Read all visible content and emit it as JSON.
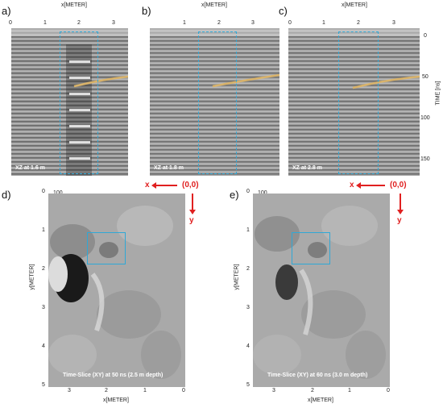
{
  "panels_top": [
    {
      "letter": "a)",
      "x_title": "x[METER]",
      "x_ticks": [
        "0",
        "1",
        "2",
        "3"
      ],
      "caption": "XZ at 1.6 m"
    },
    {
      "letter": "b)",
      "x_title": "x[METER]",
      "x_ticks": [
        "1",
        "2",
        "3"
      ],
      "caption": "XZ at 1.8 m"
    },
    {
      "letter": "c)",
      "x_title": "x[METER]",
      "x_ticks": [
        "0",
        "1",
        "2",
        "3"
      ],
      "caption": "XZ at 2.8 m"
    }
  ],
  "time_axis": {
    "title": "TIME [ns]",
    "ticks": [
      "0",
      "50",
      "100",
      "150"
    ]
  },
  "panels_bottom": [
    {
      "letter": "d)",
      "corner_tick": "100",
      "caption": "Time-Slice (XY) at 50 ns (2.5 m depth)",
      "x_title": "x[METER]",
      "x_ticks": [
        "3",
        "2",
        "1",
        "0"
      ],
      "y_title": "y[METER]",
      "y_ticks": [
        "0",
        "1",
        "2",
        "3",
        "4",
        "5"
      ],
      "origin": "(0,0)",
      "x_arrow": "x",
      "y_arrow": "y"
    },
    {
      "letter": "e)",
      "corner_tick": "100",
      "caption": "Time-Slice (XY) at 60 ns (3.0 m depth)",
      "x_title": "x[METER]",
      "x_ticks": [
        "3",
        "2",
        "1",
        "0"
      ],
      "y_title": "y[METER]",
      "y_ticks": [
        "0",
        "1",
        "2",
        "3",
        "4",
        "5"
      ],
      "origin": "(0,0)",
      "x_arrow": "x",
      "y_arrow": "y"
    }
  ],
  "colors": {
    "roi": "#2fa8d6",
    "marker": "#e02020",
    "reflector": "#d9b36a"
  }
}
